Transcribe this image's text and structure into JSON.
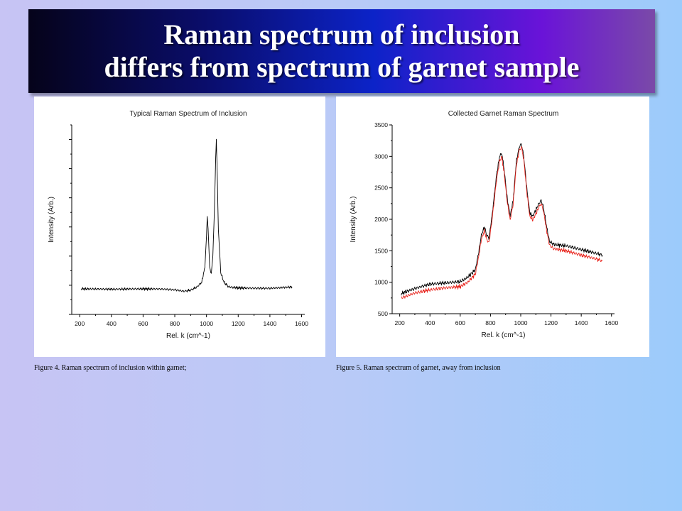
{
  "slide": {
    "title_line1": "Raman spectrum of inclusion",
    "title_line2": "differs from spectrum of garnet sample",
    "caption_left": "Figure 4. Raman spectrum of inclusion within garnet;",
    "caption_right": "Figure 5. Raman spectrum of garnet, away from inclusion"
  },
  "chart_data": [
    {
      "type": "line",
      "title": "Typical Raman Spectrum of Inclusion",
      "xlabel": "Rel. k (cm^-1)",
      "ylabel": "Intensity (Arb.)",
      "xlim": [
        150,
        1620
      ],
      "xticks": [
        200,
        400,
        600,
        800,
        1000,
        1200,
        1400,
        1600
      ],
      "ylim": [
        0,
        1
      ],
      "yticks_labeled": false,
      "grid": false,
      "series": [
        {
          "color": "#000000",
          "x": [
            210,
            300,
            400,
            500,
            600,
            700,
            800,
            860,
            900,
            940,
            970,
            990,
            1000,
            1005,
            1010,
            1020,
            1030,
            1040,
            1050,
            1058,
            1062,
            1066,
            1075,
            1090,
            1110,
            1140,
            1200,
            1300,
            1400,
            1540
          ],
          "y": [
            0.135,
            0.134,
            0.133,
            0.134,
            0.135,
            0.134,
            0.13,
            0.122,
            0.128,
            0.145,
            0.17,
            0.25,
            0.42,
            0.52,
            0.45,
            0.25,
            0.22,
            0.3,
            0.55,
            0.82,
            0.92,
            0.8,
            0.45,
            0.22,
            0.17,
            0.145,
            0.14,
            0.138,
            0.138,
            0.145
          ]
        }
      ]
    },
    {
      "type": "line",
      "title": "Collected Garnet Raman Spectrum",
      "xlabel": "Rel. k (cm^-1)",
      "ylabel": "Intensity (Arb.)",
      "xlim": [
        150,
        1620
      ],
      "xticks": [
        200,
        400,
        600,
        800,
        1000,
        1200,
        1400,
        1600
      ],
      "ylim": [
        500,
        3500
      ],
      "yticks": [
        500,
        1000,
        1500,
        2000,
        2500,
        3000,
        3500
      ],
      "grid": false,
      "series": [
        {
          "color": "#000000",
          "x": [
            210,
            300,
            400,
            500,
            600,
            650,
            700,
            720,
            740,
            760,
            775,
            790,
            810,
            840,
            860,
            875,
            890,
            910,
            930,
            950,
            970,
            990,
            1005,
            1020,
            1040,
            1060,
            1080,
            1100,
            1120,
            1135,
            1150,
            1170,
            1190,
            1220,
            1300,
            1400,
            1500,
            1540
          ],
          "y": [
            820,
            900,
            970,
            990,
            1010,
            1080,
            1200,
            1450,
            1750,
            1880,
            1750,
            1700,
            2050,
            2700,
            3000,
            3050,
            2800,
            2350,
            2050,
            2300,
            2900,
            3150,
            3200,
            3000,
            2500,
            2100,
            2050,
            2150,
            2250,
            2300,
            2200,
            1900,
            1650,
            1600,
            1580,
            1520,
            1460,
            1430
          ]
        },
        {
          "color": "#e8251e",
          "x": [
            210,
            300,
            400,
            500,
            600,
            650,
            700,
            720,
            740,
            760,
            775,
            790,
            810,
            840,
            860,
            875,
            890,
            910,
            930,
            950,
            970,
            990,
            1005,
            1020,
            1040,
            1060,
            1080,
            1100,
            1120,
            1135,
            1150,
            1170,
            1190,
            1220,
            1300,
            1400,
            1500,
            1540
          ],
          "y": [
            750,
            830,
            880,
            910,
            930,
            1000,
            1130,
            1380,
            1680,
            1820,
            1680,
            1630,
            1980,
            2620,
            2930,
            2990,
            2740,
            2290,
            1990,
            2240,
            2840,
            3090,
            3150,
            2950,
            2440,
            2040,
            1990,
            2090,
            2190,
            2250,
            2140,
            1840,
            1590,
            1530,
            1500,
            1430,
            1370,
            1340
          ]
        }
      ]
    }
  ]
}
